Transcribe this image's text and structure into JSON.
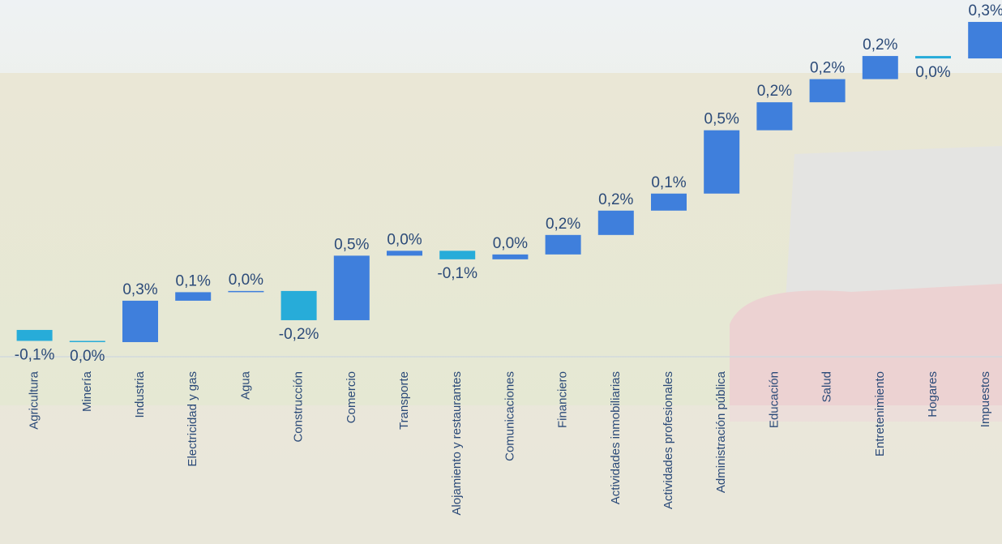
{
  "chart_data": {
    "type": "waterfall",
    "categories": [
      "Agricultura",
      "Minería",
      "Industria",
      "Electricidad y gas",
      "Agua",
      "Construcción",
      "Comercio",
      "Transporte",
      "Alojamiento y restaurantes",
      "Comunicaciones",
      "Financiero",
      "Actividades inmobiliarias",
      "Actividades profesionales",
      "Administración pública",
      "Educación",
      "Salud",
      "Entretenimiento",
      "Hogares",
      "Impuestos"
    ],
    "values": [
      -0.09,
      -0.01,
      0.34,
      0.07,
      0.01,
      -0.24,
      0.53,
      0.04,
      -0.07,
      0.04,
      0.16,
      0.2,
      0.14,
      0.52,
      0.23,
      0.19,
      0.19,
      -0.02,
      0.3
    ],
    "value_labels": [
      "-0,1%",
      "0,0%",
      "0,3%",
      "0,1%",
      "0,0%",
      "-0,2%",
      "0,5%",
      "0,0%",
      "-0,1%",
      "0,0%",
      "0,2%",
      "0,2%",
      "0,1%",
      "0,5%",
      "0,2%",
      "0,2%",
      "0,2%",
      "0,0%",
      "0,3%"
    ],
    "color": "#3f7fdc",
    "negative_color": "#27acd9",
    "ylim": [
      -0.22,
      2.71
    ]
  }
}
